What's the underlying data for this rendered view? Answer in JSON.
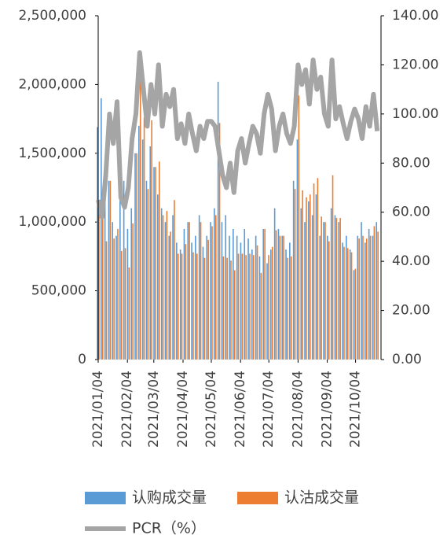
{
  "chart_data": {
    "type": "bar-line",
    "x": [
      "2021/01/04",
      "2021/01/08",
      "2021/01/12",
      "2021/01/16",
      "2021/01/20",
      "2021/01/24",
      "2021/01/28",
      "2021/02/01",
      "2021/02/05",
      "2021/02/09",
      "2021/02/13",
      "2021/02/17",
      "2021/02/21",
      "2021/02/25",
      "2021/03/01",
      "2021/03/05",
      "2021/03/09",
      "2021/03/13",
      "2021/03/17",
      "2021/03/21",
      "2021/03/25",
      "2021/03/29",
      "2021/04/02",
      "2021/04/06",
      "2021/04/10",
      "2021/04/14",
      "2021/04/18",
      "2021/04/22",
      "2021/04/26",
      "2021/04/30",
      "2021/05/04",
      "2021/05/08",
      "2021/05/12",
      "2021/05/16",
      "2021/05/20",
      "2021/05/24",
      "2021/05/28",
      "2021/06/01",
      "2021/06/05",
      "2021/06/09",
      "2021/06/13",
      "2021/06/17",
      "2021/06/21",
      "2021/06/25",
      "2021/06/29",
      "2021/07/03",
      "2021/07/07",
      "2021/07/11",
      "2021/07/15",
      "2021/07/19",
      "2021/07/23",
      "2021/07/27",
      "2021/07/31",
      "2021/08/04",
      "2021/08/08",
      "2021/08/12",
      "2021/08/16",
      "2021/08/20",
      "2021/08/24",
      "2021/08/28",
      "2021/09/01",
      "2021/09/05",
      "2021/09/09",
      "2021/09/13",
      "2021/09/17",
      "2021/09/21",
      "2021/09/25",
      "2021/09/29",
      "2021/10/03",
      "2021/10/07",
      "2021/10/11",
      "2021/10/15",
      "2021/10/19",
      "2021/10/23",
      "2021/10/27"
    ],
    "series": [
      {
        "name": "认购成交量",
        "color": "#5b9bd5",
        "values": [
          1690000,
          1900000,
          1150000,
          1300000,
          1000000,
          900000,
          1200000,
          1300000,
          950000,
          1100000,
          1500000,
          1700000,
          1600000,
          1300000,
          1550000,
          1400000,
          1200000,
          1100000,
          1000000,
          900000,
          1050000,
          850000,
          800000,
          950000,
          1000000,
          850000,
          900000,
          1050000,
          820000,
          900000,
          1000000,
          1100000,
          2020000,
          1000000,
          1050000,
          900000,
          950000,
          900000,
          850000,
          950000,
          880000,
          800000,
          900000,
          750000,
          950000,
          700000,
          800000,
          1100000,
          950000,
          900000,
          800000,
          850000,
          1300000,
          1600000,
          1100000,
          1000000,
          1150000,
          1050000,
          1200000,
          900000,
          1000000,
          900000,
          1100000,
          1050000,
          1000000,
          850000,
          900000,
          800000,
          650000,
          900000,
          1000000,
          850000,
          950000,
          900000,
          1000000
        ]
      },
      {
        "name": "认沽成交量",
        "color": "#ed7d31",
        "values": [
          1100000,
          1100000,
          860000,
          1300000,
          880000,
          950000,
          790000,
          810000,
          670000,
          990000,
          1500000,
          2130000,
          1760000,
          1240000,
          1740000,
          1400000,
          1440000,
          1050000,
          1080000,
          930000,
          1160000,
          770000,
          770000,
          840000,
          1000000,
          780000,
          770000,
          1000000,
          740000,
          870000,
          970000,
          1050000,
          1720000,
          750000,
          740000,
          720000,
          650000,
          770000,
          770000,
          760000,
          770000,
          760000,
          830000,
          630000,
          950000,
          760000,
          820000,
          940000,
          900000,
          900000,
          740000,
          750000,
          1240000,
          1920000,
          1230000,
          1180000,
          1200000,
          1280000,
          1320000,
          1040000,
          1000000,
          860000,
          1340000,
          1030000,
          1030000,
          820000,
          810000,
          780000,
          660000,
          880000,
          900000,
          880000,
          900000,
          970000,
          930000
        ]
      },
      {
        "name": "PCR（%）",
        "color": "#a5a5a5",
        "axis": "y2",
        "values": [
          65,
          58,
          75,
          100,
          88,
          105,
          66,
          62,
          70,
          90,
          100,
          125,
          110,
          95,
          112,
          100,
          120,
          95,
          108,
          103,
          110,
          90,
          96,
          88,
          100,
          92,
          85,
          95,
          90,
          97,
          97,
          95,
          85,
          75,
          70,
          80,
          68,
          85,
          90,
          80,
          88,
          95,
          92,
          84,
          100,
          108,
          102,
          85,
          95,
          100,
          92,
          88,
          95,
          120,
          112,
          118,
          104,
          122,
          110,
          115,
          100,
          95,
          122,
          98,
          103,
          96,
          90,
          97,
          102,
          98,
          90,
          103,
          95,
          108,
          93
        ]
      }
    ],
    "xlim": [
      "2021/01/04",
      "2021/10/31"
    ],
    "xticks": [
      "2021/01/04",
      "2021/02/04",
      "2021/03/04",
      "2021/04/04",
      "2021/05/04",
      "2021/06/04",
      "2021/07/04",
      "2021/08/04",
      "2021/09/04",
      "2021/10/04"
    ],
    "ylim": [
      0,
      2500000
    ],
    "yticks": [
      0,
      {
        "value": 500000,
        "label": "500,000"
      },
      {
        "value": 1000000,
        "label": "1,000,000"
      },
      {
        "value": 1500000,
        "label": "1,500,000"
      },
      {
        "value": 2000000,
        "label": "2,000,000"
      },
      {
        "value": 2500000,
        "label": "2,500,000"
      }
    ],
    "y2lim": [
      0,
      140
    ],
    "y2ticks": [
      {
        "value": 0,
        "label": "0.00"
      },
      {
        "value": 20,
        "label": "20.00"
      },
      {
        "value": 40,
        "label": "40.00"
      },
      {
        "value": 60,
        "label": "60.00"
      },
      {
        "value": 80,
        "label": "80.00"
      },
      {
        "value": 100,
        "label": "100.00"
      },
      {
        "value": 120,
        "label": "120.00"
      },
      {
        "value": 140,
        "label": "140.00"
      }
    ]
  }
}
